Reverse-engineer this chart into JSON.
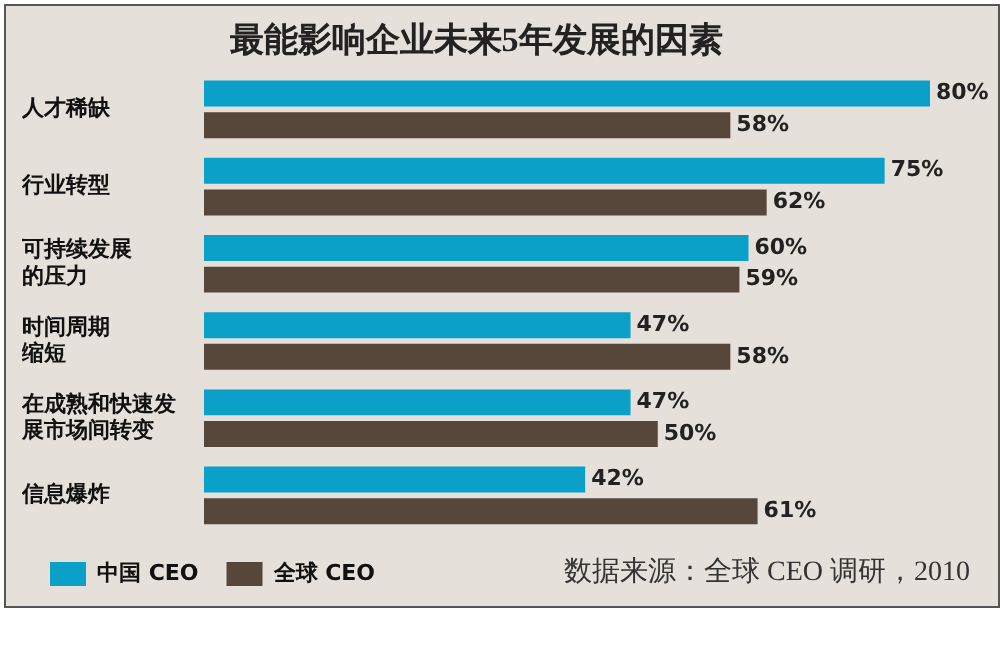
{
  "chart_data": {
    "type": "bar",
    "orientation": "horizontal",
    "title": "最能影响企业未来5年发展的因素",
    "categories": [
      "人才稀缺",
      "行业转型",
      "可持续发展的压力",
      "时间周期缩短",
      "在成熟和快速发展市场间转变",
      "信息爆炸"
    ],
    "series": [
      {
        "name": "中国 CEO",
        "color": "#0aa0c8",
        "values": [
          80,
          75,
          60,
          47,
          47,
          42
        ],
        "value_labels": [
          "80%",
          "75%",
          "60%",
          "47%",
          "47%",
          "42%"
        ]
      },
      {
        "name": "全球 CEO",
        "color": "#57463a",
        "values": [
          58,
          62,
          59,
          58,
          50,
          61
        ],
        "value_labels": [
          "58%",
          "62%",
          "59%",
          "58%",
          "50%",
          "61%"
        ]
      }
    ],
    "legend": "bottom",
    "annotations": [
      "数据来源：全球 CEO 调研，2010"
    ]
  }
}
